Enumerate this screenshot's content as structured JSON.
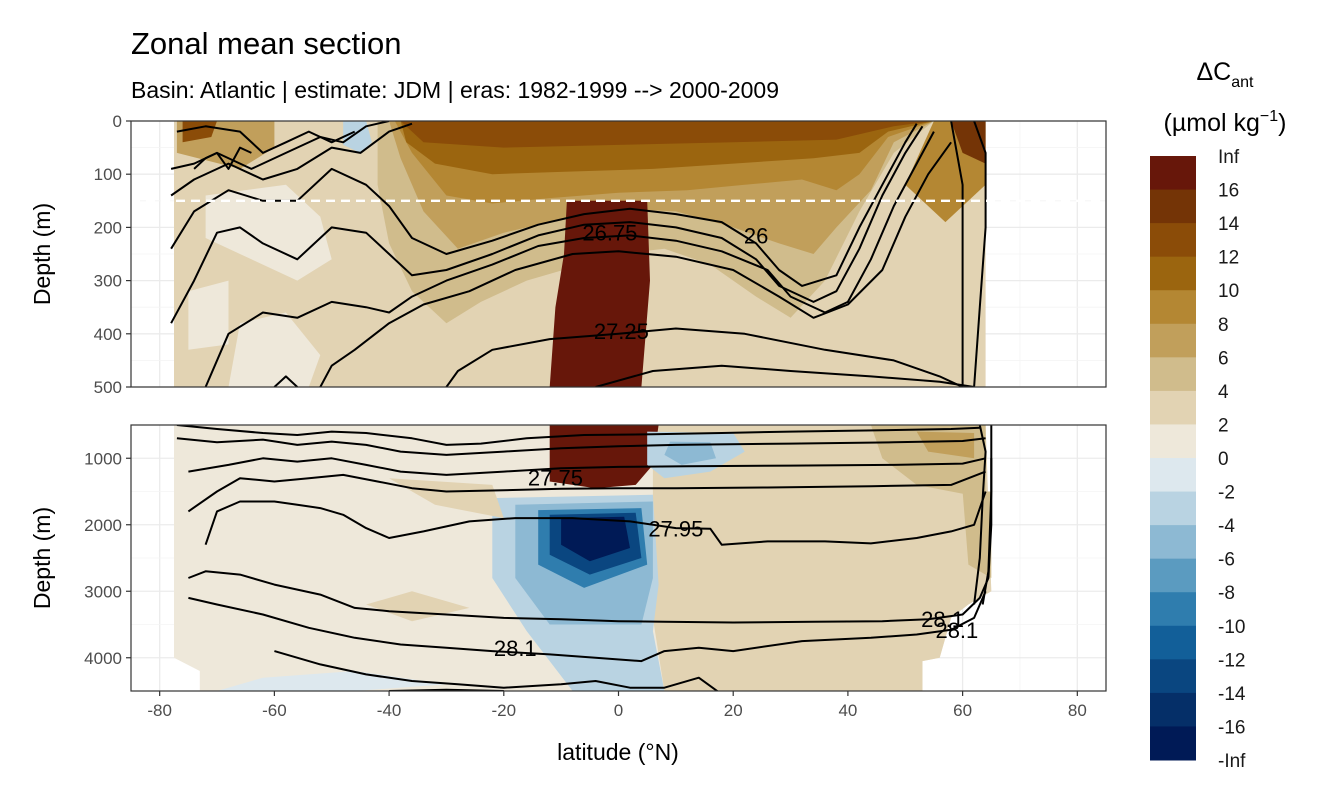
{
  "chart_data": {
    "type": "heatmap",
    "title": "Zonal mean section",
    "subtitle": "Basin: Atlantic | estimate: JDM  | eras: 1982-1999 --> 2000-2009",
    "xlabel": "latitude (°N)",
    "ylabel": "Depth (m)",
    "x_ticks": [
      "-80",
      "-60",
      "-40",
      "-20",
      "0",
      "20",
      "40",
      "60",
      "80"
    ],
    "xlim": [
      -85,
      85
    ],
    "panels": [
      {
        "ylim": [
          0,
          500
        ],
        "y_ticks": [
          "0",
          "100",
          "200",
          "300",
          "400",
          "500"
        ],
        "reference_depth": 150
      },
      {
        "ylim": [
          500,
          4500
        ],
        "y_ticks": [
          "1000",
          "2000",
          "3000",
          "4000"
        ]
      }
    ],
    "legend": {
      "title": "ΔC",
      "title_sub": "ant",
      "unit": "(µmol kg",
      "unit_sup": "−1",
      "unit_close": ")",
      "placement": "right",
      "labels": [
        "Inf",
        "16",
        "14",
        "12",
        "10",
        "8",
        "6",
        "4",
        "2",
        "0",
        "-2",
        "-4",
        "-6",
        "-8",
        "-10",
        "-12",
        "-14",
        "-16",
        "-Inf"
      ],
      "colors": [
        "#67170a",
        "#743406",
        "#8b4c08",
        "#9b650f",
        "#b48733",
        "#c19f5b",
        "#d0bc8c",
        "#e2d3b3",
        "#eee8da",
        "#dde8ee",
        "#b9d3e2",
        "#8db9d3",
        "#5b9bc0",
        "#2f7dae",
        "#125f99",
        "#0a4680",
        "#052f68",
        "#001a56"
      ]
    },
    "contour_labels": [
      {
        "text": "26.75",
        "x": -1.5,
        "depth": 210
      },
      {
        "text": "26",
        "x": 24,
        "depth": 215
      },
      {
        "text": "27.25",
        "x": 0.5,
        "depth": 395
      },
      {
        "text": "27.75",
        "x": -11,
        "depth": 1290
      },
      {
        "text": "27.95",
        "x": 10,
        "depth": 2060
      },
      {
        "text": "28.1",
        "x": -18,
        "depth": 3850
      },
      {
        "text": "28.1",
        "x": 56.5,
        "depth": 3420
      },
      {
        "text": "28.1",
        "x": 59,
        "depth": 3580
      }
    ]
  }
}
